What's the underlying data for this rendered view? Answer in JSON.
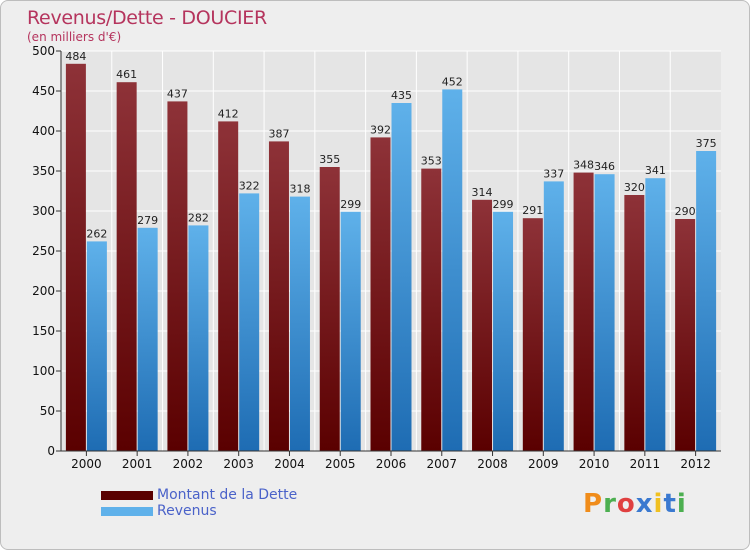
{
  "colors": {
    "debt_dark": "#5a0000",
    "debt_light": "#8e3238",
    "revenue_dark": "#1e6cb3",
    "revenue_light": "#5fb1ea",
    "grid": "#ffffff",
    "title": "#b5345d"
  },
  "legend": {
    "debt_label": "Montant de la Dette",
    "revenue_label": "Revenus"
  },
  "logo": {
    "text": "Proxiti",
    "colors": [
      "#f08c1a",
      "#4caf50",
      "#e04040",
      "#3a79d0",
      "#f0c020",
      "#3a79d0",
      "#4caf50"
    ]
  },
  "chart_data": {
    "type": "bar",
    "title": "Revenus/Dette - DOUCIER",
    "subtitle": "(en milliers d'€)",
    "xlabel": "",
    "ylabel": "",
    "categories": [
      "2000",
      "2001",
      "2002",
      "2003",
      "2004",
      "2005",
      "2006",
      "2007",
      "2008",
      "2009",
      "2010",
      "2011",
      "2012"
    ],
    "series": [
      {
        "name": "Montant de la Dette",
        "values": [
          484,
          461,
          437,
          412,
          387,
          355,
          392,
          353,
          314,
          291,
          348,
          320,
          290
        ]
      },
      {
        "name": "Revenus",
        "values": [
          262,
          279,
          282,
          322,
          318,
          299,
          435,
          452,
          299,
          337,
          346,
          341,
          375
        ]
      }
    ],
    "ylim": [
      0,
      500
    ],
    "yticks": [
      0,
      50,
      100,
      150,
      200,
      250,
      300,
      350,
      400,
      450,
      500
    ],
    "grid": true,
    "legend_position": "bottom-left"
  }
}
